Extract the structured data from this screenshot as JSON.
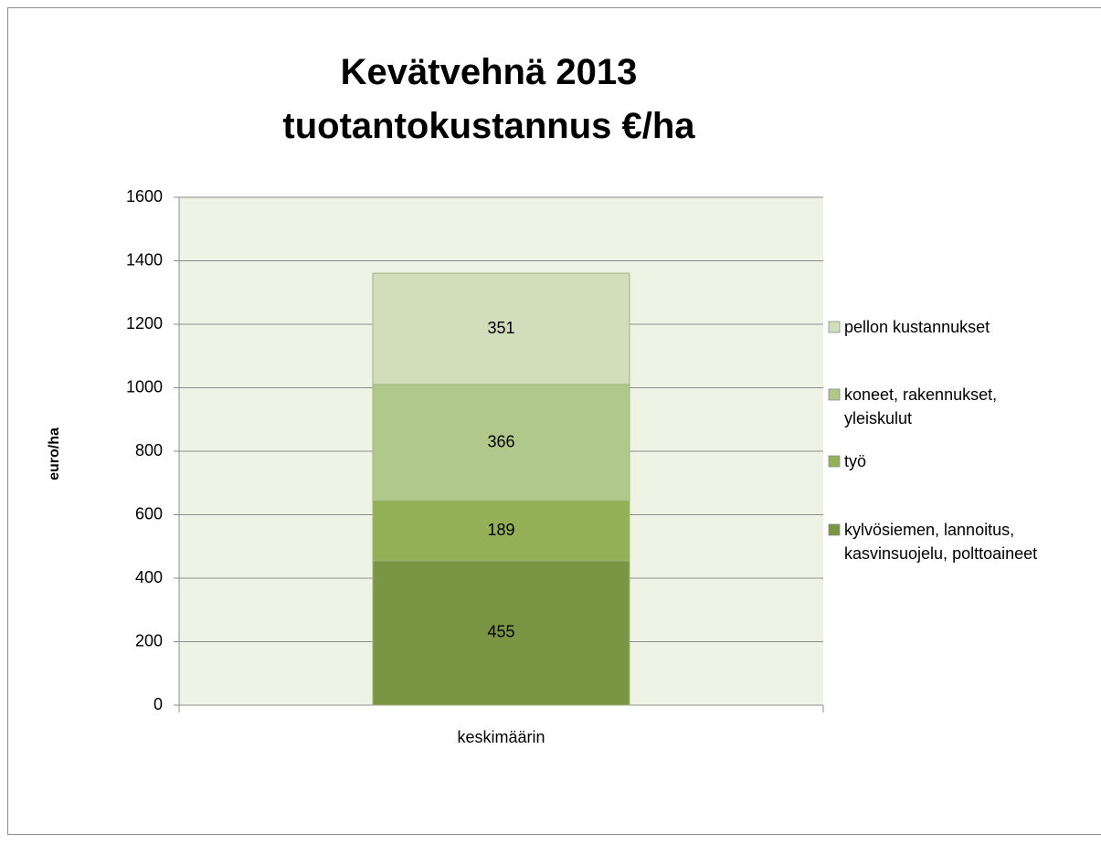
{
  "chart_data": {
    "type": "stacked_bar",
    "title": "Kevätvehnä 2013 tuotantokustannus €/ha",
    "y_label": "euro/ha",
    "categories": [
      "keskimäärin"
    ],
    "series": [
      {
        "name": "kylvösiemen, lannoitus, kasvinsuojelu, polttoaineet",
        "color": "#7a9544",
        "values": [
          455
        ]
      },
      {
        "name": "työ",
        "color": "#94b157",
        "values": [
          189
        ]
      },
      {
        "name": "koneet, rakennukset, yleiskulut",
        "color": "#b0c88a",
        "values": [
          366
        ]
      },
      {
        "name": "pellon kustannukset",
        "color": "#d2ddbb",
        "values": [
          351
        ]
      }
    ],
    "ylim": [
      0,
      1600
    ],
    "yticks": [
      0,
      200,
      400,
      600,
      800,
      1000,
      1200,
      1400,
      1600
    ],
    "grid": true,
    "legend": "right"
  }
}
